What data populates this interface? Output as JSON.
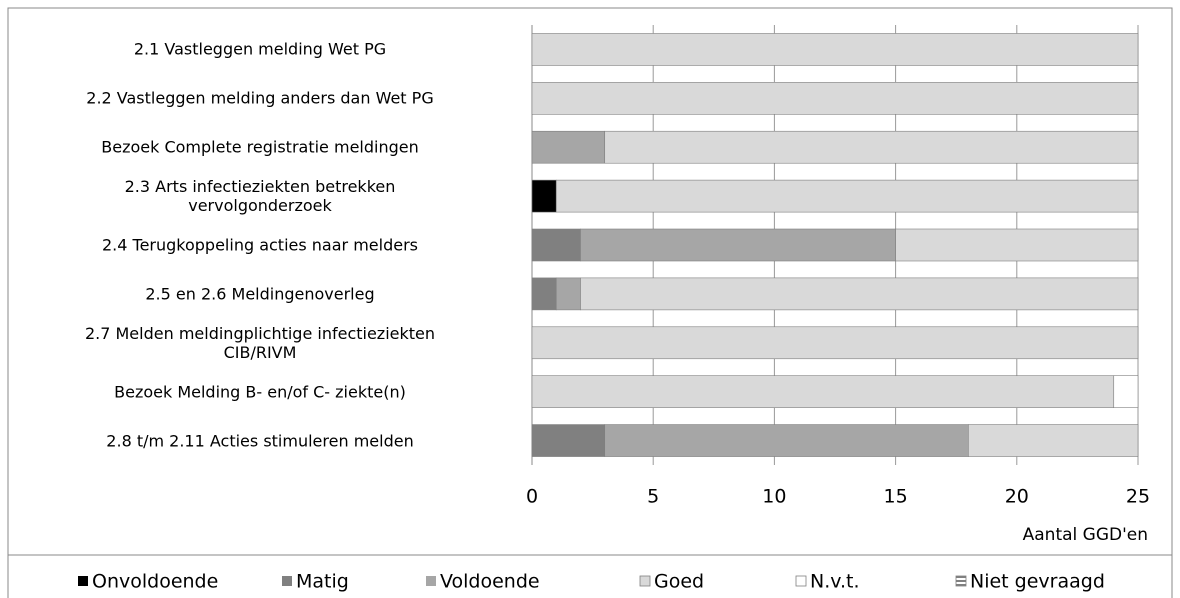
{
  "chart_data": {
    "type": "stacked-barh",
    "categories": [
      "2.1 Vastleggen melding Wet PG",
      "2.2 Vastleggen melding anders dan Wet PG",
      "Bezoek Complete registratie meldingen",
      "2.3 Arts infectieziekten betrekken\nvervolgonderzoek",
      "2.4 Terugkoppeling  acties naar melders",
      "2.5 en 2.6 Meldingenoverleg",
      "2.7 Melden meldingplichtige infectieziekten\nCIB/RIVM",
      "Bezoek Melding B- en/of C- ziekte(n)",
      "2.8 t/m 2.11 Acties stimuleren melden"
    ],
    "series": [
      {
        "name": "Onvoldoende",
        "color": "#000000",
        "values": [
          0,
          0,
          0,
          1,
          0,
          0,
          0,
          0,
          0
        ]
      },
      {
        "name": "Matig",
        "color": "#808080",
        "values": [
          0,
          0,
          0,
          0,
          2,
          1,
          0,
          0,
          3
        ]
      },
      {
        "name": "Voldoende",
        "color": "#a6a6a6",
        "values": [
          0,
          0,
          3,
          0,
          13,
          1,
          0,
          0,
          15
        ]
      },
      {
        "name": "Goed",
        "color": "#d9d9d9",
        "values": [
          25,
          25,
          22,
          24,
          10,
          23,
          25,
          24,
          7
        ]
      },
      {
        "name": "N.v.t.",
        "color": "#ffffff",
        "values": [
          0,
          0,
          0,
          0,
          0,
          0,
          0,
          1,
          0
        ]
      },
      {
        "name": "Niet gevraagd",
        "color": "#969696",
        "values": [
          0,
          0,
          0,
          0,
          0,
          0,
          0,
          0,
          0
        ]
      }
    ],
    "xlabel": "Aantal GGD'en",
    "xlim": [
      0,
      25
    ],
    "xticks": [
      0,
      5,
      10,
      15,
      20,
      25
    ],
    "grid": true,
    "legend": "bottom"
  }
}
